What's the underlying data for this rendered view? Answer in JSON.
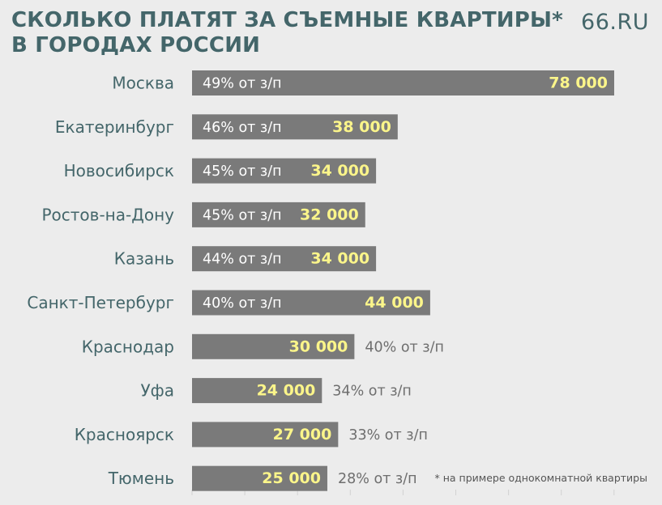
{
  "header": {
    "title_line1": "СКОЛЬКО ПЛАТЯТ ЗА СЪЕМНЫЕ КВАРТИРЫ*",
    "title_line2": "В ГОРОДАХ РОССИИ",
    "brand": "66.RU"
  },
  "footnote": "* на примере однокомнатной квартиры",
  "colors": {
    "background": "#ececec",
    "bar": "#7a7a7a",
    "value_text": "#fbf58a",
    "share_text_inside": "#ffffff",
    "share_text_outside": "#6e6e6e",
    "city_text": "#44666a",
    "title_text": "#44666a"
  },
  "chart_data": {
    "type": "bar",
    "orientation": "horizontal",
    "categories": [
      "Москва",
      "Екатеринбург",
      "Новосибирск",
      "Ростов-на-Дону",
      "Казань",
      "Санкт-Петербург",
      "Краснодар",
      "Уфа",
      "Красноярск",
      "Тюмень"
    ],
    "values": [
      78000,
      38000,
      34000,
      32000,
      34000,
      44000,
      30000,
      24000,
      27000,
      25000
    ],
    "value_labels": [
      "78 000",
      "38 000",
      "34 000",
      "32 000",
      "34 000",
      "44 000",
      "30 000",
      "24 000",
      "27 000",
      "25 000"
    ],
    "salary_share_labels": [
      "49% от з/п",
      "46% от з/п",
      "45% от з/п",
      "45% от з/п",
      "44% от з/п",
      "40% от з/п",
      "40% от з/п",
      "34% от з/п",
      "33% от з/п",
      "28% от з/п"
    ],
    "share_label_inside_bar": [
      true,
      true,
      true,
      true,
      true,
      true,
      false,
      false,
      false,
      false
    ],
    "xlim": [
      0,
      80000
    ]
  }
}
